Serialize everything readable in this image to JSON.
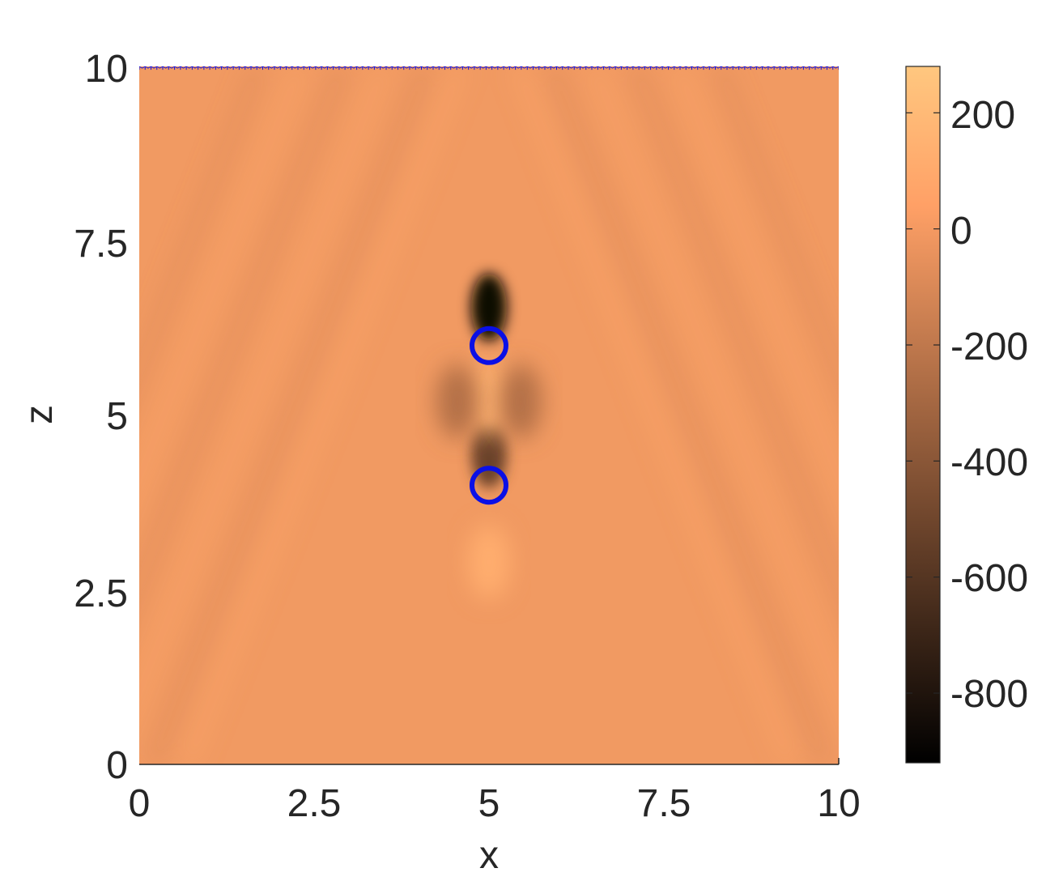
{
  "chart_data": {
    "type": "heatmap",
    "title": "",
    "xlabel": "x",
    "ylabel": "z",
    "xlim": [
      0,
      10
    ],
    "ylim": [
      0,
      10
    ],
    "x_ticks": [
      "0",
      "2.5",
      "5",
      "7.5",
      "10"
    ],
    "y_ticks": [
      "0",
      "2.5",
      "5",
      "7.5",
      "10"
    ],
    "colorbar": {
      "range": [
        -920,
        280
      ],
      "ticks": [
        "200",
        "0",
        "-200",
        "-400",
        "-600",
        "-800"
      ],
      "colormap": "copper"
    },
    "colors": {
      "background_field": "#f19a62",
      "marker": "#0a10e6",
      "copper_dark": "#000000",
      "copper_light": "#ffc77f"
    },
    "receivers": {
      "z": 10,
      "x_start": 0,
      "x_end": 10,
      "count": 120,
      "marker": "*"
    },
    "scatterers": [
      {
        "x": 5,
        "z": 6,
        "marker": "o"
      },
      {
        "x": 5,
        "z": 4,
        "marker": "o"
      }
    ],
    "features": [
      {
        "x": 5,
        "z": 6.55,
        "value": -880
      },
      {
        "x": 5,
        "z": 4.45,
        "value": -520
      },
      {
        "x": 5,
        "z": 5.25,
        "value": 150
      },
      {
        "x": 5,
        "z": 2.9,
        "value": 120
      },
      {
        "x": 4.55,
        "z": 5.2,
        "value": -250
      },
      {
        "x": 5.45,
        "z": 5.2,
        "value": -250
      }
    ]
  }
}
